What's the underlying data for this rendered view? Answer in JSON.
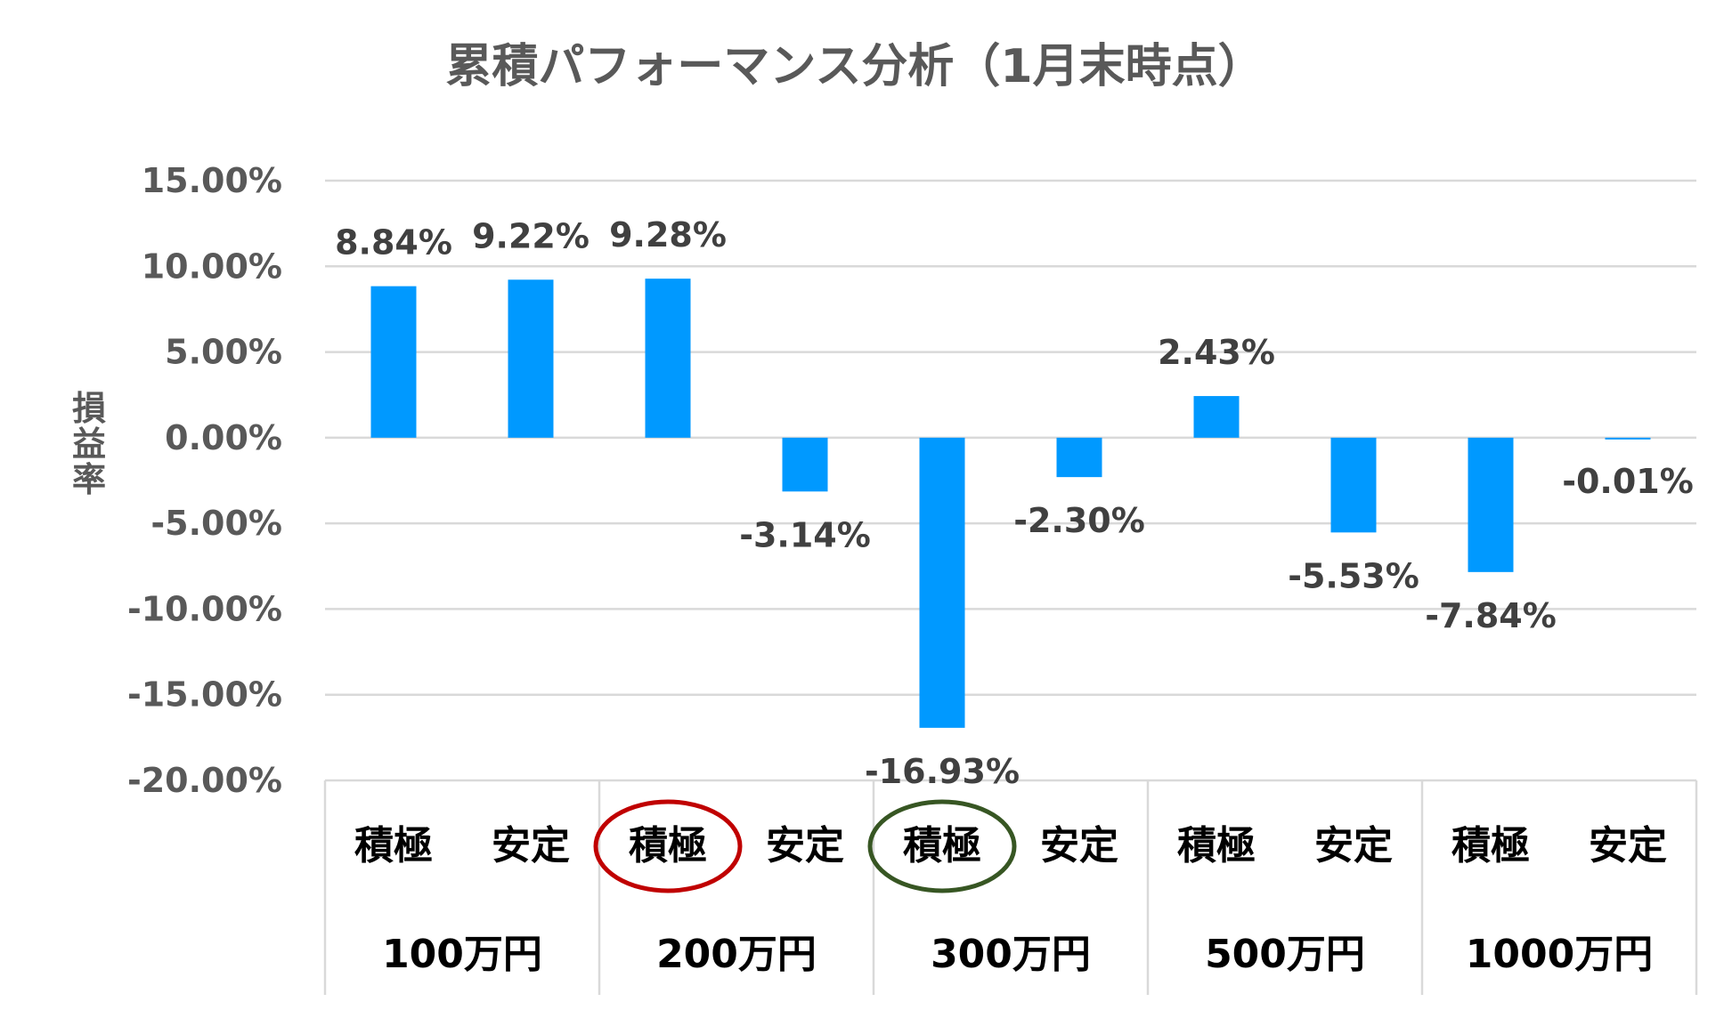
{
  "chart_data": {
    "type": "bar",
    "title": "累積パフォーマンス分析（1月末時点）",
    "ylabel": "損益率",
    "xlabel": "",
    "ylim": [
      -20,
      15
    ],
    "y_ticks": [
      "15.00%",
      "10.00%",
      "5.00%",
      "0.00%",
      "-5.00%",
      "-10.00%",
      "-15.00%",
      "-20.00%"
    ],
    "y_tick_values": [
      15,
      10,
      5,
      0,
      -5,
      -10,
      -15,
      -20
    ],
    "grid": true,
    "bar_color": "#0099FF",
    "categories": [
      "積極",
      "安定",
      "積極",
      "安定",
      "積極",
      "安定",
      "積極",
      "安定",
      "積極",
      "安定"
    ],
    "groups": [
      "100万円",
      "200万円",
      "300万円",
      "500万円",
      "1000万円"
    ],
    "values": [
      8.84,
      9.22,
      9.28,
      -3.14,
      -16.93,
      -2.3,
      2.43,
      -5.53,
      -7.84,
      -0.01
    ],
    "data_labels": [
      "8.84%",
      "9.22%",
      "9.28%",
      "-3.14%",
      "-16.93%",
      "-2.30%",
      "2.43%",
      "-5.53%",
      "-7.84%",
      "-0.01%"
    ],
    "annotations": [
      {
        "type": "ellipse",
        "category_index": 2,
        "color": "#C00000"
      },
      {
        "type": "ellipse",
        "category_index": 4,
        "color": "#375623"
      }
    ]
  }
}
